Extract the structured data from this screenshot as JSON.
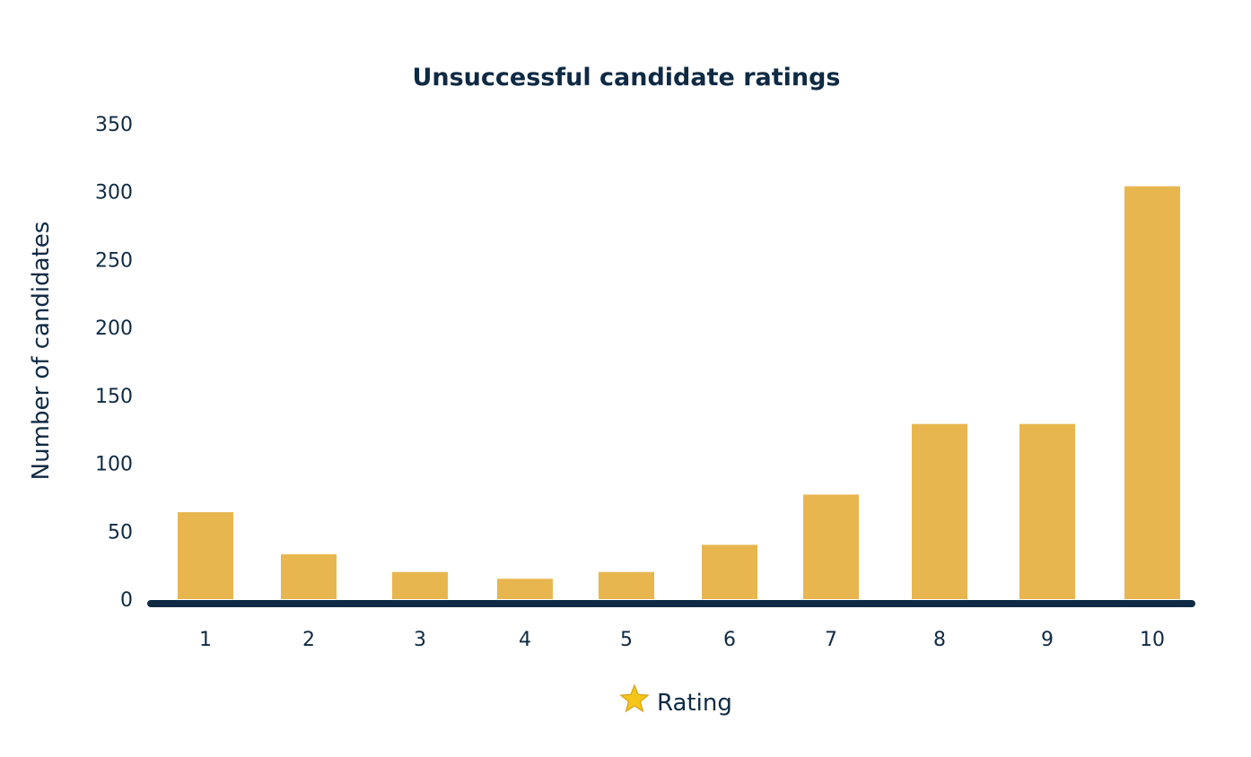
{
  "chart_data": {
    "type": "bar",
    "title": "Unsuccessful candidate ratings",
    "xlabel": "Rating",
    "xlabel_icon": "star-icon",
    "ylabel": "Number of candidates",
    "categories": [
      "1",
      "2",
      "3",
      "4",
      "5",
      "6",
      "7",
      "8",
      "9",
      "10"
    ],
    "values": [
      64,
      33,
      20,
      15,
      20,
      40,
      77,
      129,
      129,
      304
    ],
    "ylim": [
      0,
      350
    ],
    "yticks": [
      "0",
      "50",
      "100",
      "150",
      "200",
      "250",
      "300",
      "350"
    ],
    "grid": false,
    "legend": "none",
    "colors": {
      "bar": "#e8b64f",
      "axis": "#0f2a44",
      "text": "#0f2a44",
      "star": "#f5c518"
    }
  }
}
